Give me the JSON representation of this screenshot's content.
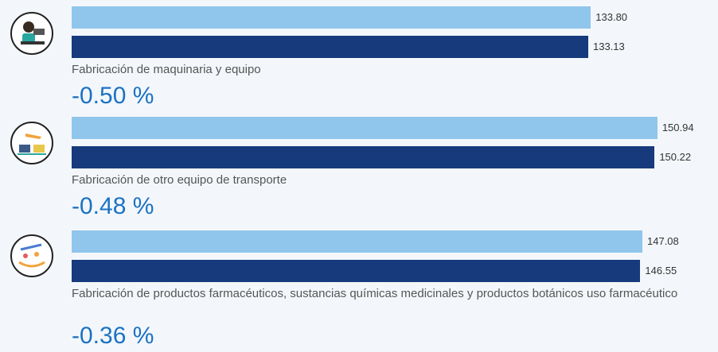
{
  "chart_data": {
    "type": "bar",
    "xlim": [
      0,
      160
    ],
    "series": [
      {
        "color": "#90c5ec"
      },
      {
        "color": "#163a7c"
      }
    ],
    "groups": [
      {
        "label": "Fabricación de maquinaria y equipo",
        "values": [
          133.8,
          133.13
        ],
        "value_labels": [
          "133.80",
          "133.13"
        ],
        "change": "-0.50 %"
      },
      {
        "label": "Fabricación de otro equipo de transporte",
        "values": [
          150.94,
          150.22
        ],
        "value_labels": [
          "150.94",
          "150.22"
        ],
        "change": "-0.48 %"
      },
      {
        "label": "Fabricación de productos farmacéuticos, sustancias químicas medicinales y productos botánicos uso farmacéutico",
        "values": [
          147.08,
          146.55
        ],
        "value_labels": [
          "147.08",
          "146.55"
        ],
        "change": "-0.36 %"
      }
    ]
  }
}
